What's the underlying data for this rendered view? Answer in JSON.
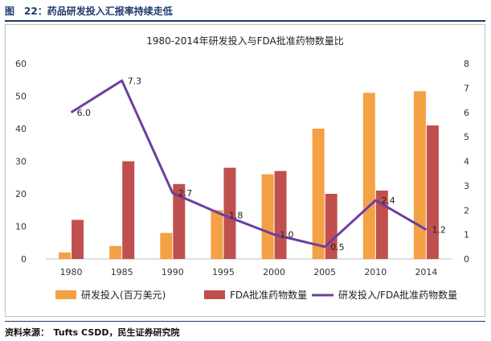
{
  "figure": {
    "title": "图　22：药品研发投入汇报率持续走低",
    "source": "资料来源：　Tufts CSDD，民生证券研究院"
  },
  "colors": {
    "rd": "#f4a044",
    "fda": "#c0504d",
    "ratio": "#6b3fa0",
    "header": "#1f3a6b"
  },
  "chart_data": {
    "type": "bar",
    "title": "1980-2014年研发投入与FDA批准药物数量比",
    "categories": [
      "1980",
      "1985",
      "1990",
      "1995",
      "2000",
      "2005",
      "2010",
      "2014"
    ],
    "series": [
      {
        "name": "研发投入(百万美元)",
        "type": "bar",
        "axis": "left",
        "values": [
          2,
          4,
          8,
          15,
          26,
          40,
          51,
          51.5
        ]
      },
      {
        "name": "FDA批准药物数量",
        "type": "bar",
        "axis": "left",
        "values": [
          12,
          30,
          23,
          28,
          27,
          20,
          21,
          41
        ]
      },
      {
        "name": "研发投入/FDA批准药物数量",
        "type": "line",
        "axis": "right",
        "values": [
          6.0,
          7.3,
          2.7,
          1.8,
          1.0,
          0.5,
          2.4,
          1.2
        ]
      }
    ],
    "data_labels": [
      "6.0",
      "7.3",
      "2.7",
      "1.8",
      "1.0",
      "0.5",
      "2.4",
      "1.2"
    ],
    "yleft": {
      "min": 0,
      "max": 60,
      "ticks": [
        "0",
        "10",
        "20",
        "30",
        "40",
        "50",
        "60"
      ]
    },
    "yright": {
      "min": 0,
      "max": 8,
      "ticks": [
        "0",
        "1",
        "2",
        "3",
        "4",
        "5",
        "6",
        "7",
        "8"
      ]
    },
    "grid": false,
    "legend_position": "bottom"
  }
}
